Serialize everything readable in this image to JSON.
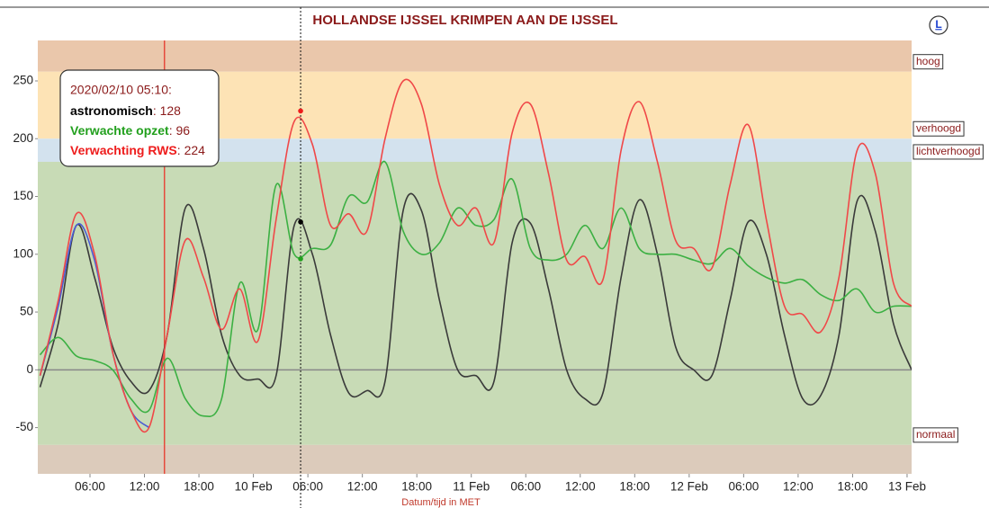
{
  "chart_data": {
    "type": "line",
    "title": "HOLLANDSE IJSSEL KRIMPEN AAN DE IJSSEL",
    "x_label": "Datum/tijd in MET",
    "button": "L",
    "xlim": [
      0.25,
      96.5
    ],
    "ylim": [
      -90,
      285
    ],
    "yticks": [
      -50,
      0,
      50,
      100,
      150,
      200,
      250
    ],
    "xticks": [
      {
        "value": 6,
        "label": "06:00"
      },
      {
        "value": 12,
        "label": "12:00"
      },
      {
        "value": 18,
        "label": "18:00"
      },
      {
        "value": 24,
        "label": "10 Feb"
      },
      {
        "value": 30,
        "label": "06:00"
      },
      {
        "value": 36,
        "label": "12:00"
      },
      {
        "value": 42,
        "label": "18:00"
      },
      {
        "value": 48,
        "label": "11 Feb"
      },
      {
        "value": 54,
        "label": "06:00"
      },
      {
        "value": 60,
        "label": "12:00"
      },
      {
        "value": 66,
        "label": "18:00"
      },
      {
        "value": 72,
        "label": "12 Feb"
      },
      {
        "value": 78,
        "label": "06:00"
      },
      {
        "value": 84,
        "label": "12:00"
      },
      {
        "value": 90,
        "label": "18:00"
      },
      {
        "value": 96,
        "label": "13 Feb"
      }
    ],
    "bands": [
      {
        "label": "hoog",
        "from": 258,
        "to": 285,
        "color": "#eac7ab"
      },
      {
        "label": "verhoogd",
        "from": 200,
        "to": 258,
        "color": "#fde3b5"
      },
      {
        "label": "lichtverhoogd",
        "from": 180,
        "to": 200,
        "color": "#d3e2ee"
      },
      {
        "label": "normaal",
        "from": -65,
        "to": 180,
        "color": "#c8dbb6"
      },
      {
        "from": -90,
        "to": -65,
        "color": "#dccbbb"
      }
    ],
    "now_line": 14.2,
    "cursor": 29.2,
    "tooltip": {
      "time": "2020/02/10 05:10:",
      "values": [
        128,
        96,
        224
      ]
    },
    "x": [
      0.5,
      2.5,
      4.5,
      6.5,
      8.5,
      10.5,
      12.5,
      14.5,
      16.5,
      18.5,
      20.5,
      22.5,
      24.5,
      26.5,
      28.5,
      30.5,
      32.5,
      34.5,
      36.5,
      38.5,
      40.5,
      42.5,
      44.5,
      46.5,
      48.5,
      50.5,
      52.5,
      54.5,
      56.5,
      58.5,
      60.5,
      62.5,
      64.5,
      66.5,
      68.5,
      70.5,
      72.5,
      74.5,
      76.5,
      78.5,
      80.5,
      82.5,
      84.5,
      86.5,
      88.5,
      90.5,
      92.5,
      94.5,
      96.5
    ],
    "series": [
      {
        "name": "astronomisch",
        "color": "#3a3a3a",
        "tooltip_color": "#000000",
        "values": [
          -15,
          40,
          125,
          80,
          20,
          -10,
          -18,
          30,
          140,
          105,
          30,
          -5,
          -8,
          -5,
          125,
          100,
          30,
          -20,
          -18,
          -10,
          138,
          138,
          60,
          0,
          -5,
          -10,
          110,
          127,
          70,
          0,
          -25,
          -20,
          80,
          147,
          100,
          20,
          0,
          -5,
          60,
          128,
          100,
          30,
          -25,
          -22,
          30,
          146,
          120,
          40,
          0
        ]
      },
      {
        "name": "Verwachte opzet",
        "color": "#3cb043",
        "tooltip_color": "#22a01e",
        "values": [
          13,
          28,
          12,
          8,
          0,
          -25,
          -35,
          10,
          -25,
          -40,
          -25,
          75,
          35,
          160,
          100,
          105,
          108,
          150,
          145,
          180,
          120,
          100,
          110,
          140,
          125,
          130,
          165,
          105,
          95,
          100,
          125,
          105,
          140,
          105,
          100,
          100,
          95,
          92,
          105,
          90,
          80,
          75,
          78,
          65,
          60,
          70,
          50,
          55,
          55
        ]
      },
      {
        "color": "#4a5bd4",
        "values": [
          -5,
          55,
          125,
          95,
          15,
          -35,
          -50,
          null,
          null,
          null,
          null,
          null,
          null,
          null,
          null,
          null,
          null,
          null,
          null,
          null,
          null,
          null,
          null,
          null,
          null,
          null,
          null,
          null,
          null,
          null,
          null,
          null,
          null,
          null,
          null,
          null,
          null,
          null,
          null,
          null,
          null,
          null,
          null,
          null,
          null,
          null,
          null,
          null,
          null
        ]
      },
      {
        "name": "Verwachting RWS",
        "color": "#f04848",
        "tooltip_color": "#ee1c1c",
        "values": [
          -5,
          60,
          135,
          100,
          15,
          -35,
          -50,
          30,
          112,
          80,
          35,
          70,
          25,
          130,
          215,
          195,
          125,
          135,
          120,
          200,
          250,
          230,
          160,
          125,
          140,
          110,
          205,
          230,
          170,
          95,
          98,
          78,
          190,
          232,
          180,
          112,
          105,
          88,
          160,
          212,
          130,
          55,
          48,
          33,
          80,
          190,
          170,
          75,
          55
        ]
      }
    ]
  }
}
